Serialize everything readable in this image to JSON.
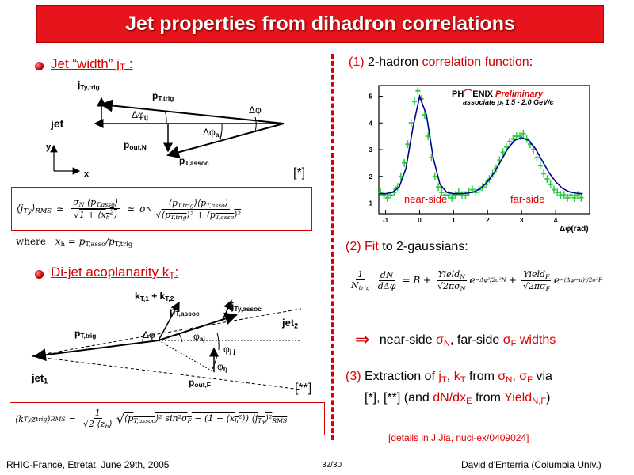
{
  "title": "Jet properties from dihadron correlations",
  "left": {
    "bullet1": {
      "label": "Jet “width” j",
      "sub": "T",
      "colon": " :"
    },
    "diagram1": {
      "j_ty_trig": "j",
      "j_ty_trig_sub": "Ty,trig",
      "pt_trig": "p",
      "pt_trig_sub": "T,trig",
      "jet": "jet",
      "dphi_tj": "Δφ",
      "dphi_tj_sub": "tj",
      "dphi": "Δφ",
      "pout_n": "p",
      "pout_n_sub": "out,N",
      "dphi_aj": "Δφ",
      "dphi_aj_sub": "aj",
      "pt_assoc": "p",
      "pt_assoc_sub": "T,assoc",
      "y": "y",
      "x": "x",
      "ref": "[*]"
    },
    "formula1": {
      "lhs": "⟨j",
      "lhs_sub": "Ty",
      "lhs_end": "⟩",
      "rms": "RMS",
      "sim1": "≃",
      "sigmaN_pt": "σ",
      "sigmaN_sub": "N",
      "pt_asso": "⟨p",
      "pt_asso_sub": "T,asso",
      "pt_asso_end": "⟩",
      "sqrt1": "√",
      "one_plus": "1 + ⟨x",
      "xh_sub": "h",
      "xh_sup": "2",
      "xh_end": "⟩",
      "sim2": "≃",
      "sigmaN2": "σ",
      "sigmaN2_sub": "N",
      "num2": "⟨p",
      "num2_sub1": "T,trig",
      "num2_mid": "⟩⟨p",
      "num2_sub2": "T,asso",
      "num2_end": "⟩",
      "den2": "⟨p",
      "den2_sub1": "T,trig",
      "den2_mid": "⟩² + ⟨p",
      "den2_sub2": "T,asso",
      "den2_end": "⟩²"
    },
    "where": "where",
    "where_expr": "x",
    "where_sub": "h",
    "where_rhs": "= p",
    "where_rhs_sub": "T,asso",
    "where_slash": "/p",
    "where_rhs_sub2": "T,trig",
    "bullet2": {
      "label": "Di-jet acoplanarity k",
      "sub": "T",
      "colon": ":"
    },
    "diagram2": {
      "kt_sum": "k",
      "kt_sum_sub1": "T,1",
      "kt_plus": " + k",
      "kt_sum_sub2": "T,2",
      "pt_assoc": "p",
      "pt_assoc_sub": "T,assoc",
      "j_ty_assoc": "j",
      "j_ty_assoc_sub": "Ty,assoc",
      "jet2": "jet",
      "jet2_sub": "2",
      "pt_trig": "p",
      "pt_trig_sub": "T,trig",
      "dphi": "Δφ",
      "phi_aj": "φ",
      "phi_aj_sub": "aj",
      "phi_jj": "φ",
      "phi_jj_sub": "j j",
      "phi_tj": "φ",
      "phi_tj_sub": "tj",
      "jet1": "jet",
      "jet1_sub": "1",
      "pout_f": "p",
      "pout_f_sub": "out,F",
      "ref": "[**]"
    },
    "formula2": {
      "lhs": "⟨k",
      "lhs_sub": "Ty",
      "lhs_mid": "z",
      "lhs_sub2": "trig",
      "lhs_end": "⟩",
      "rms": "RMS",
      "eq": "=",
      "one": "1",
      "den": "√2 ⟨z",
      "den_sub": "h",
      "den_end": "⟩",
      "body": "⟨p",
      "body_sub": "T,assoc",
      "body_rest": "⟩² sin²σ",
      "body_sub2": "F",
      "body_rest2": " − (1 + ⟨x",
      "body_sub3": "h",
      "body_rest3": "²⟩) ⟨j",
      "body_sub4": "Ty",
      "body_rest4": "⟩²",
      "body_sub5": "RMS"
    }
  },
  "right": {
    "item1": {
      "num": "(1)",
      "text1": " 2-hadron ",
      "red": "correlation function",
      "text2": ":"
    },
    "plot": {
      "logo": "PH",
      "logo2": "ENIX",
      "prelim": "Preliminary",
      "assoc": "associate p",
      "assoc_sub": "t",
      "assoc_range": " 1.5 - 2.0 GeV/c",
      "near": "near-side",
      "far": "far-side",
      "xaxis": "Δφ(rad)"
    },
    "item2": {
      "num": "(2)",
      "red": "Fit",
      "text": " to 2-gaussians:"
    },
    "fit_formula": {
      "lhs_num": "1",
      "lhs_den": "N",
      "lhs_den_sub": "trig",
      "dn": "dN",
      "ddphi": "dΔφ",
      "eq": "= B +",
      "yield_n": "Yield",
      "yield_n_sub": "N",
      "sqrt_n": "√2πσ",
      "sqrt_n_sub": "N",
      "exp_n": "e",
      "exp_n_sup": "−Δφ²/2σ²N",
      "plus": "+",
      "yield_f": "Yield",
      "yield_f_sub": "F",
      "sqrt_f": "√2πσ",
      "sqrt_f_sub": "F",
      "exp_f": "e",
      "exp_f_sup": "−(Δφ−π)²/2σ²F"
    },
    "widths": {
      "arrow": "⇒",
      "text1": "near-side ",
      "sigma_n": "σ",
      "sigma_n_sub": "N",
      "text2": ", far-side ",
      "sigma_f": "σ",
      "sigma_f_sub": "F",
      "red": " widths"
    },
    "item3": {
      "num": "(3)",
      "text1": " Extraction of ",
      "jt": "j",
      "jt_sub": "T",
      "comma": ", ",
      "kt": "k",
      "kt_sub": "T",
      "text2": " from ",
      "sigma_n": "σ",
      "sigma_n_sub": "N",
      "c2": ", ",
      "sigma_f": "σ",
      "sigma_f_sub": "F",
      "text3": " via",
      "line2a": "[*], [**] (and ",
      "dn": "dN/dx",
      "dn_sub": "E",
      "from": " from ",
      "yield": "Yield",
      "yield_sub": "N,F",
      "end": ")"
    },
    "details": "[details in J.Jia, nucl-ex/0409024]"
  },
  "footer": {
    "left": "RHIC-France, Etretat, June 29th, 2005",
    "center": "32/30",
    "right": "David d'Enterria (Columbia Univ.)"
  },
  "chart_data": {
    "type": "scatter",
    "title": "",
    "xlabel": "Δφ(rad)",
    "ylabel": "",
    "xlim": [
      -1.2,
      5.0
    ],
    "ylim": [
      0.6,
      5.4
    ],
    "x_ticks": [
      -1,
      0,
      1,
      2,
      3,
      4
    ],
    "y_ticks": [
      1,
      2,
      3,
      4,
      5
    ],
    "series": [
      {
        "x": [
          -1.15,
          -1.05,
          -0.95,
          -0.85,
          -0.75,
          -0.65,
          -0.55,
          -0.45,
          -0.35,
          -0.25,
          -0.15,
          -0.05,
          0.05,
          0.15,
          0.25,
          0.35,
          0.45,
          0.55,
          0.65,
          0.75,
          0.85,
          0.95,
          1.05,
          1.15,
          1.25,
          1.35,
          1.45,
          1.55,
          1.65,
          1.75,
          1.85,
          1.95,
          2.05,
          2.15,
          2.25,
          2.35,
          2.45,
          2.55,
          2.65,
          2.75,
          2.85,
          2.95,
          3.05,
          3.15,
          3.25,
          3.35,
          3.45,
          3.55,
          3.65,
          3.75,
          3.85,
          3.95,
          4.05,
          4.15,
          4.25,
          4.35,
          4.45,
          4.55,
          4.65,
          4.75
        ],
        "y": [
          1.4,
          1.3,
          1.2,
          1.3,
          1.4,
          1.6,
          2.0,
          2.5,
          3.2,
          4.0,
          4.8,
          5.2,
          4.9,
          4.3,
          3.5,
          2.7,
          2.0,
          1.6,
          1.4,
          1.3,
          1.3,
          1.2,
          1.3,
          1.4,
          1.3,
          1.3,
          1.4,
          1.5,
          1.4,
          1.5,
          1.6,
          1.7,
          1.9,
          2.1,
          2.3,
          2.6,
          2.9,
          3.1,
          3.3,
          3.4,
          3.5,
          3.5,
          3.6,
          3.4,
          3.2,
          3.0,
          2.7,
          2.4,
          2.1,
          1.9,
          1.7,
          1.5,
          1.4,
          1.3,
          1.3,
          1.2,
          1.3,
          1.2,
          1.3,
          1.2
        ]
      },
      {
        "x": [
          -1.2,
          -1.0,
          -0.8,
          -0.6,
          -0.4,
          -0.2,
          0.0,
          0.2,
          0.4,
          0.6,
          0.8,
          1.0,
          1.2,
          1.4,
          1.6,
          1.8,
          2.0,
          2.2,
          2.4,
          2.6,
          2.8,
          3.0,
          3.2,
          3.4,
          3.6,
          3.8,
          4.0,
          4.2,
          4.4,
          4.6,
          4.8
        ],
        "y": [
          1.35,
          1.35,
          1.4,
          1.6,
          2.3,
          3.8,
          5.0,
          4.3,
          2.7,
          1.7,
          1.4,
          1.35,
          1.35,
          1.37,
          1.42,
          1.55,
          1.8,
          2.15,
          2.6,
          3.05,
          3.35,
          3.45,
          3.35,
          3.05,
          2.6,
          2.15,
          1.8,
          1.55,
          1.42,
          1.37,
          1.35
        ]
      }
    ]
  }
}
